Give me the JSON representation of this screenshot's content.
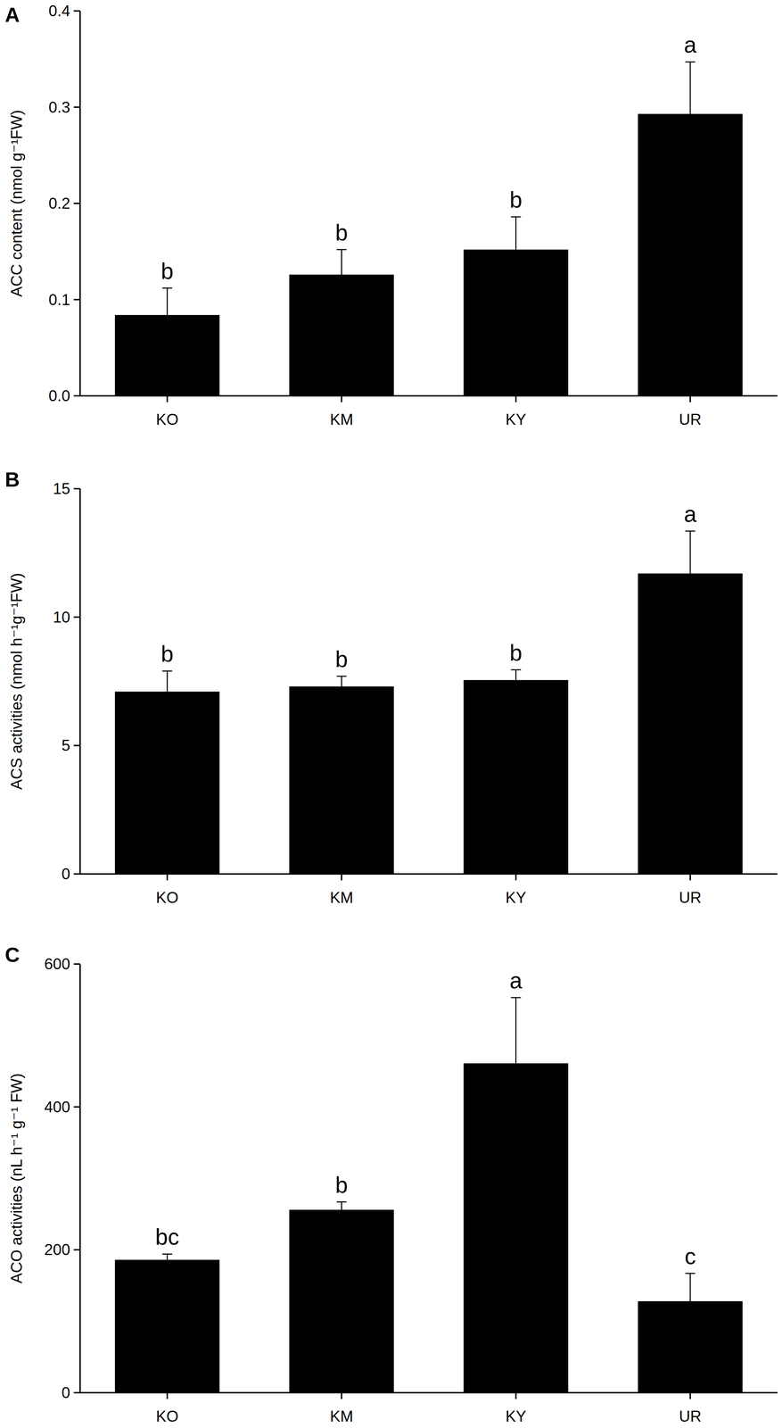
{
  "chart_data": [
    {
      "type": "bar",
      "title": "A",
      "y_label": "ACC content (nmol g⁻¹FW)",
      "categories": [
        "KO",
        "KM",
        "KY",
        "UR"
      ],
      "values": [
        0.084,
        0.126,
        0.152,
        0.293
      ],
      "errors": [
        0.028,
        0.026,
        0.034,
        0.054
      ],
      "annotations": [
        "b",
        "b",
        "b",
        "a"
      ],
      "color": "#000000",
      "ylim": [
        0,
        0.4
      ],
      "yticks": [
        {
          "value": 0,
          "label": "0.0"
        },
        0.1,
        0.2,
        0.3,
        0.4
      ],
      "grid": false
    },
    {
      "type": "bar",
      "title": "B",
      "y_label": "ACS activities  (nmol h⁻¹g⁻¹FW)",
      "categories": [
        "KO",
        "KM",
        "KY",
        "UR"
      ],
      "values": [
        7.1,
        7.3,
        7.55,
        11.7
      ],
      "errors": [
        0.8,
        0.4,
        0.4,
        1.65
      ],
      "annotations": [
        "b",
        "b",
        "b",
        "a"
      ],
      "color": "#000000",
      "ylim": [
        0,
        15
      ],
      "yticks": [
        0,
        5,
        10,
        15
      ],
      "grid": false
    },
    {
      "type": "bar",
      "title": "C",
      "y_label": "ACO activities (nL h⁻¹ g⁻¹ FW)",
      "categories": [
        "KO",
        "KM",
        "KY",
        "UR"
      ],
      "values": [
        186,
        256,
        461,
        128
      ],
      "errors": [
        8,
        11,
        92,
        39
      ],
      "annotations": [
        "bc",
        "b",
        "a",
        "c"
      ],
      "color": "#000000",
      "ylim": [
        0,
        600
      ],
      "yticks": [
        0,
        200,
        400,
        600
      ],
      "grid": false
    }
  ]
}
